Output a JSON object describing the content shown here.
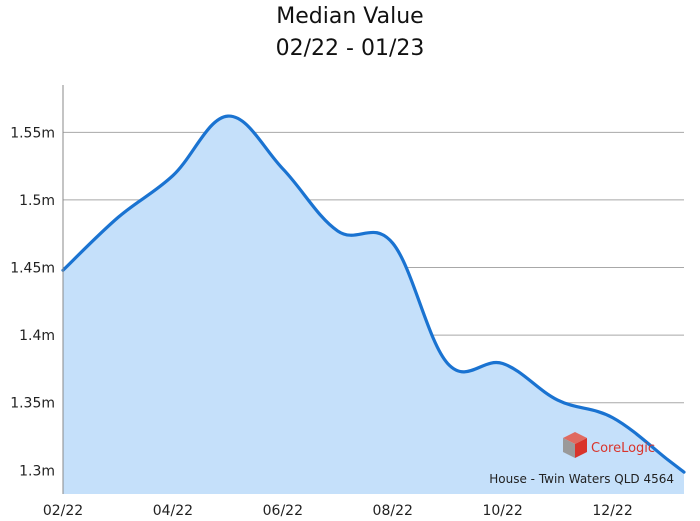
{
  "chart_data": {
    "type": "area",
    "title": "Median Value",
    "subtitle": "02/22 - 01/23",
    "xlabel": "",
    "ylabel": "",
    "x_tick_labels": [
      "02/22",
      "04/22",
      "06/22",
      "08/22",
      "10/22",
      "12/22"
    ],
    "y_tick_labels": [
      "1.3m",
      "1.35m",
      "1.4m",
      "1.45m",
      "1.5m",
      "1.55m"
    ],
    "y_tick_values": [
      1.3,
      1.35,
      1.4,
      1.45,
      1.5,
      1.55
    ],
    "ylim": [
      1.2825,
      1.585
    ],
    "x_months_span": [
      0,
      11.3
    ],
    "grid": "horizontal",
    "series": [
      {
        "x": [
          "02/22",
          "03/22",
          "04/22",
          "05/22",
          "06/22",
          "07/22",
          "08/22",
          "09/22",
          "10/22",
          "11/22",
          "12/22",
          "01/23"
        ],
        "values": [
          1.448,
          1.487,
          1.518,
          1.562,
          1.523,
          1.477,
          1.468,
          1.379,
          1.379,
          1.352,
          1.339,
          1.308
        ],
        "color": "#1a73d1",
        "fill": "#c5e0fa"
      }
    ],
    "footer_note": "House - Twin Waters QLD 4564",
    "logo_text": "CoreLogic"
  }
}
